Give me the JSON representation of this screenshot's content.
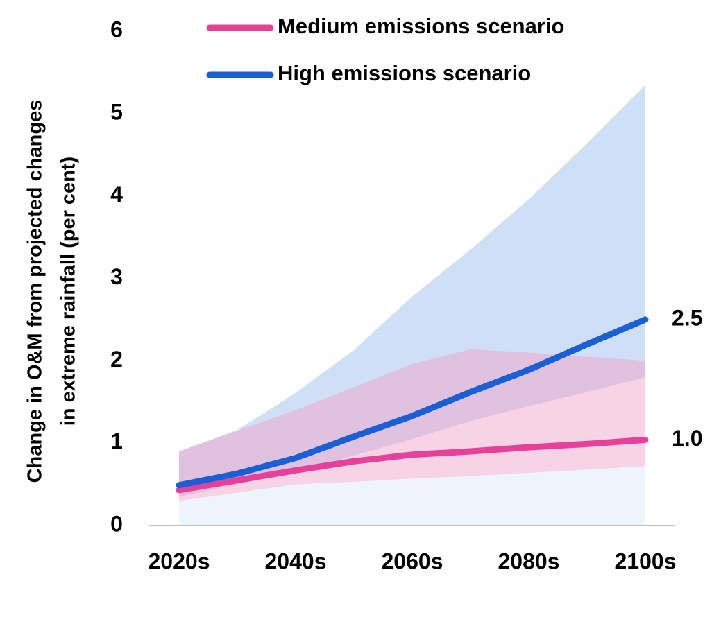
{
  "chart_data": {
    "type": "line",
    "ylabel": [
      "Change in O&M from projected changes",
      "in extreme rainfall (per cent)"
    ],
    "categories": [
      "2020s",
      null,
      "2040s",
      null,
      "2060s",
      null,
      "2080s",
      null,
      "2100s"
    ],
    "ylim": [
      0,
      6
    ],
    "yticks": [
      0,
      1,
      2,
      3,
      4,
      5,
      6
    ],
    "grid": false,
    "legend": "top",
    "series": [
      {
        "name": "Medium emissions scenario",
        "color": "#e5409a",
        "band_color": "#f2a6cc",
        "values": [
          0.43,
          0.55,
          0.67,
          0.78,
          0.86,
          0.9,
          0.95,
          0.99,
          1.04
        ],
        "value_labels": [
          null,
          null,
          null,
          null,
          null,
          null,
          null,
          null,
          "1.0"
        ],
        "range_lower": [
          0.3,
          0.4,
          0.5,
          0.53,
          0.57,
          0.6,
          0.64,
          0.68,
          0.72
        ],
        "range_upper": [
          0.9,
          1.15,
          1.4,
          1.68,
          1.96,
          2.14,
          2.1,
          2.05,
          2.0
        ]
      },
      {
        "name": "High emissions scenario",
        "color": "#1a5fd6",
        "band_color": "#cfdff5",
        "values": [
          0.49,
          0.63,
          0.82,
          1.08,
          1.33,
          1.62,
          1.89,
          2.2,
          2.5
        ],
        "value_labels": [
          null,
          null,
          null,
          null,
          null,
          null,
          null,
          null,
          "2.5"
        ],
        "range_lower": [
          0.35,
          0.5,
          0.65,
          0.85,
          1.05,
          1.27,
          1.45,
          1.62,
          1.8
        ],
        "range_upper": [
          0.9,
          1.16,
          1.61,
          2.13,
          2.78,
          3.35,
          3.96,
          4.64,
          5.35
        ]
      }
    ]
  }
}
